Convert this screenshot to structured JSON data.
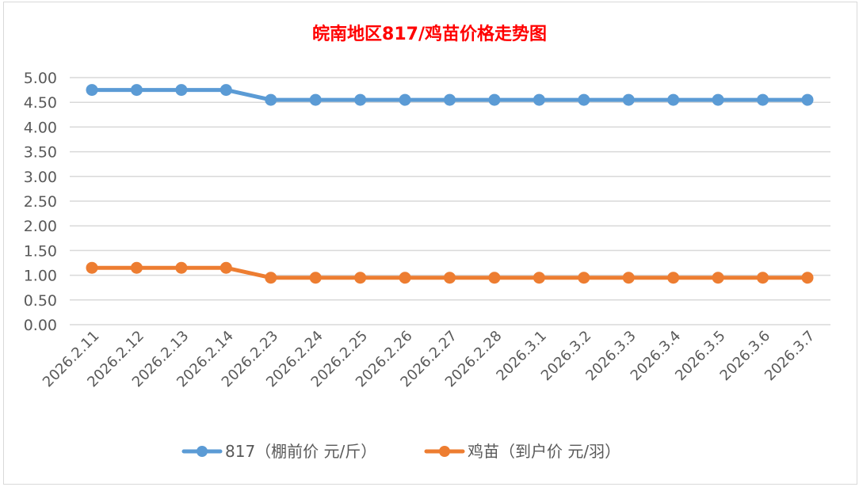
{
  "chart_data": {
    "type": "line",
    "title": "皖南地区817/鸡苗价格走势图",
    "categories": [
      "2026.2.11",
      "2026.2.12",
      "2026.2.13",
      "2026.2.14",
      "2026.2.23",
      "2026.2.24",
      "2026.2.25",
      "2026.2.26",
      "2026.2.27",
      "2026.2.28",
      "2026.3.1",
      "2026.3.2",
      "2026.3.3",
      "2026.3.4",
      "2026.3.5",
      "2026.3.6",
      "2026.3.7"
    ],
    "series": [
      {
        "name": "817（棚前价 元/斤）",
        "color": "#5b9bd5",
        "values": [
          4.75,
          4.75,
          4.75,
          4.75,
          4.55,
          4.55,
          4.55,
          4.55,
          4.55,
          4.55,
          4.55,
          4.55,
          4.55,
          4.55,
          4.55,
          4.55,
          4.55
        ]
      },
      {
        "name": "鸡苗（到户价 元/羽）",
        "color": "#ed7d31",
        "values": [
          1.15,
          1.15,
          1.15,
          1.15,
          0.95,
          0.95,
          0.95,
          0.95,
          0.95,
          0.95,
          0.95,
          0.95,
          0.95,
          0.95,
          0.95,
          0.95,
          0.95
        ]
      }
    ],
    "yticks": [
      "0.00",
      "0.50",
      "1.00",
      "1.50",
      "2.00",
      "2.50",
      "3.00",
      "3.50",
      "4.00",
      "4.50",
      "5.00"
    ],
    "ylim": [
      0,
      5
    ],
    "xlabel": "",
    "ylabel": "",
    "grid": true,
    "legend": "bottom",
    "title_color": "#ff0000"
  }
}
